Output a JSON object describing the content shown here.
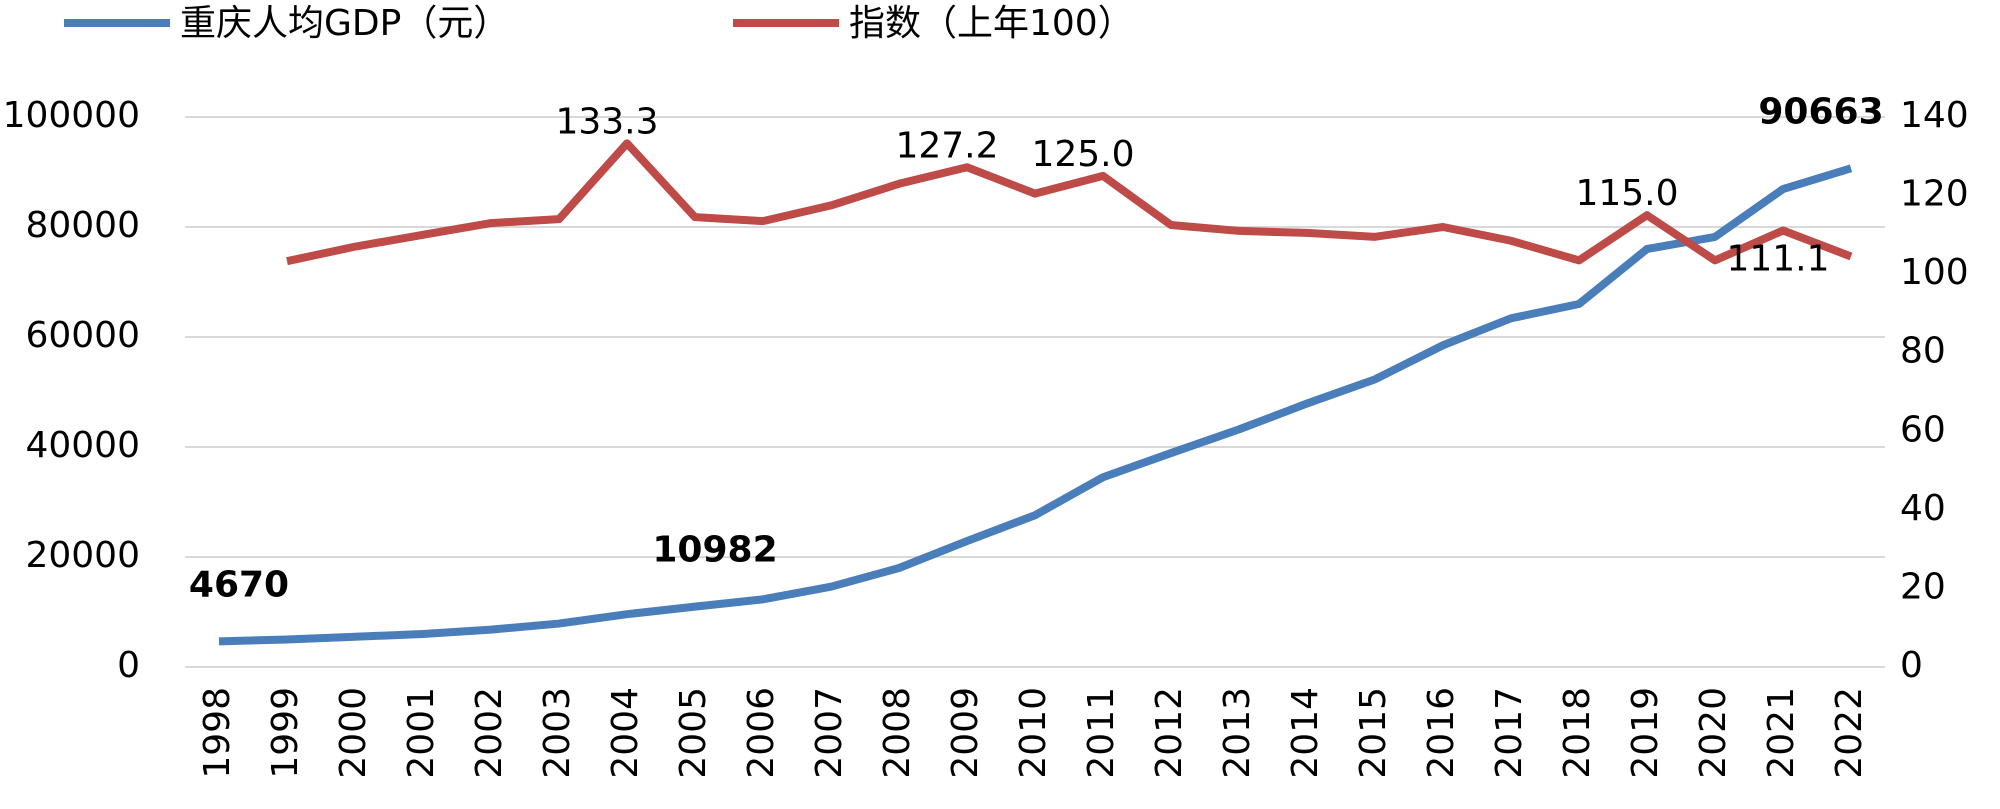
{
  "chart_data": {
    "type": "line",
    "categories": [
      "1998",
      "1999",
      "2000",
      "2001",
      "2002",
      "2003",
      "2004",
      "2005",
      "2006",
      "2007",
      "2008",
      "2009",
      "2010",
      "2011",
      "2012",
      "2013",
      "2014",
      "2015",
      "2016",
      "2017",
      "2018",
      "2019",
      "2020",
      "2021",
      "2022"
    ],
    "series": [
      {
        "name": "重庆人均GDP（元）",
        "color": "#4a7ebb",
        "values": [
          4670,
          5000,
          5500,
          6000,
          6800,
          7900,
          9600,
          10982,
          12300,
          14600,
          18000,
          22900,
          27600,
          34500,
          38900,
          43200,
          47900,
          52300,
          58500,
          63400,
          66000,
          76000,
          78200,
          86900,
          90663
        ],
        "value_labels": [
          "4670",
          null,
          null,
          null,
          null,
          null,
          null,
          "10982",
          null,
          null,
          null,
          null,
          null,
          null,
          null,
          null,
          null,
          null,
          null,
          null,
          null,
          null,
          null,
          null,
          "90663"
        ]
      },
      {
        "name": "指数（上年100）",
        "color": "#be4b48",
        "axis": "y2",
        "values": [
          null,
          103.3,
          107,
          110,
          113,
          114,
          133.3,
          114.5,
          113.5,
          117.5,
          123,
          127.2,
          120.5,
          125.0,
          112.5,
          111,
          110.5,
          109.5,
          112,
          108.5,
          103.5,
          115.0,
          103.5,
          111.1,
          104.5
        ],
        "value_labels": [
          null,
          null,
          null,
          null,
          null,
          null,
          "133.3",
          null,
          null,
          null,
          null,
          "127.2",
          null,
          "125.0",
          null,
          null,
          null,
          null,
          null,
          null,
          null,
          "115.0",
          null,
          "111.1",
          null
        ]
      }
    ],
    "ylim": [
      0,
      100000
    ],
    "yticks": [
      0,
      20000,
      40000,
      60000,
      80000,
      100000
    ],
    "y2lim": [
      0,
      140
    ],
    "y2ticks": [
      0,
      20,
      40,
      60,
      80,
      100,
      120,
      140
    ],
    "grid": true,
    "legend": "top-left"
  }
}
